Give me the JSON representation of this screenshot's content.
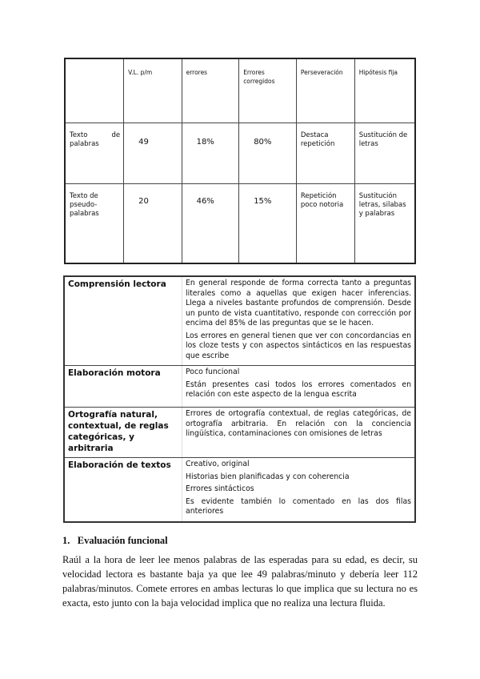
{
  "table1": {
    "headers": [
      "",
      "V.L. p/m",
      "errores",
      "Errores corregidos",
      "Perseveración",
      "Hipótesis fija"
    ],
    "rows": [
      [
        "Texto de palabras",
        "49",
        "18%",
        "80%",
        "Destaca repetición",
        "Sustitución de letras"
      ],
      [
        "Texto de pseudo-palabras",
        "20",
        "46%",
        "15%",
        "Repetición poco notoria",
        "Sustitución letras, silabas y palabras"
      ]
    ]
  },
  "table2": {
    "rows": [
      {
        "label": "Comprensión lectora",
        "paras": [
          "En general responde de forma correcta tanto a preguntas literales como a aquellas que exigen hacer inferencias. Llega a niveles bastante profundos de comprensión. Desde un punto de vista cuantitativo, responde con corrección por encima del 85% de las preguntas que se le hacen.",
          "Los errores en general tienen que ver con concordancias en los cloze tests y con aspectos sintácticos en las respuestas que escribe"
        ]
      },
      {
        "label": "Elaboración motora",
        "paras": [
          "Poco funcional",
          "Están presentes casi todos los errores comentados en relación con este aspecto de la lengua escrita"
        ]
      },
      {
        "label": "Ortografía natural, contextual, de reglas categóricas, y arbitraria",
        "paras": [
          "Errores de ortografía contextual, de reglas categóricas, de ortografía arbitraria. En relación con la conciencia lingüística, contaminaciones con omisiones de letras"
        ]
      },
      {
        "label": "Elaboración de textos",
        "paras": [
          "Creativo, original",
          "Historias bien planificadas y con coherencia",
          "Errores sintácticos",
          "Es evidente también lo comentado en las dos filas anteriores"
        ]
      }
    ]
  },
  "section": {
    "number": "1.",
    "title": "Evaluación funcional"
  },
  "paragraph": "Raúl a la hora de leer lee menos palabras de las esperadas para su edad, es decir, su velocidad lectora es bastante baja ya que lee 49 palabras/minuto y debería leer 112 palabras/minutos. Comete errores en ambas lecturas lo que implica que su lectura no es exacta, esto junto con la baja velocidad implica que no realiza una lectura fluida."
}
